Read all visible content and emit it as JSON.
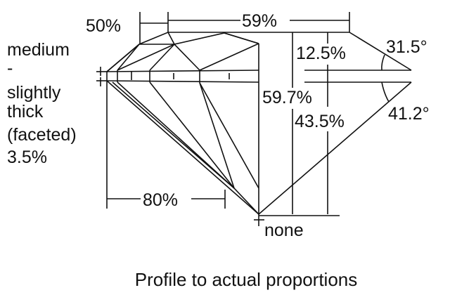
{
  "labels": {
    "crown_height_girdle": "50%",
    "table": "59%",
    "crown_height": "12.5%",
    "crown_angle": "31.5°",
    "total_depth": "59.7%",
    "pavilion_depth": "43.5%",
    "pavilion_angle": "41.2°",
    "lower_half": "80%",
    "culet": "none",
    "girdle_lines": [
      "medium",
      "-",
      "slightly",
      "thick",
      "(faceted)",
      "3.5%"
    ]
  },
  "caption": "Profile to actual proportions",
  "colors": {
    "line": "#111111",
    "background": "#ffffff"
  }
}
